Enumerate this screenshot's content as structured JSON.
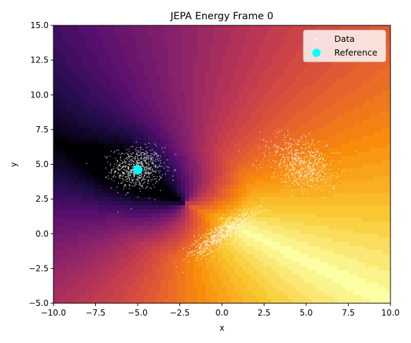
{
  "chart_data": {
    "type": "scatter",
    "title": "JEPA Energy Frame 0",
    "xlabel": "x",
    "ylabel": "y",
    "xlim": [
      -10,
      10
    ],
    "ylim": [
      -5,
      15
    ],
    "xticks": [
      -10,
      -7.5,
      -5,
      -2.5,
      0,
      2.5,
      5,
      7.5,
      10
    ],
    "yticks": [
      -5,
      -2.5,
      0,
      2.5,
      5,
      7.5,
      10,
      12.5,
      15
    ],
    "xtick_labels": [
      "−10.0",
      "−7.5",
      "−5.0",
      "−2.5",
      "0.0",
      "2.5",
      "5.0",
      "7.5",
      "10.0"
    ],
    "ytick_labels": [
      "−5.0",
      "−2.5",
      "0.0",
      "2.5",
      "5.0",
      "7.5",
      "10.0",
      "12.5",
      "15.0"
    ],
    "grid": false,
    "legend": {
      "position": "upper-right",
      "entries": [
        {
          "label": "Data",
          "color": "#ffffff"
        },
        {
          "label": "Reference",
          "color": "#00ffff"
        }
      ]
    },
    "background": {
      "kind": "energy-contour",
      "colormap": "inferno",
      "colors": {
        "low": "#000004",
        "mid": "#bc3754",
        "high": "#fcffa4"
      }
    },
    "series": [
      {
        "name": "Data",
        "kind": "scatter",
        "color": "#ffffff",
        "clusters": [
          {
            "center": [
              -5.0,
              4.7
            ],
            "spread": [
              0.75,
              0.75
            ],
            "n": 700
          },
          {
            "center": [
              4.8,
              5.0
            ],
            "spread": [
              1.1,
              0.8
            ],
            "rotation_deg": -40,
            "n": 700
          },
          {
            "center": [
              0.0,
              0.0
            ],
            "spread": [
              1.2,
              0.35
            ],
            "rotation_deg": 40,
            "n": 700
          }
        ]
      },
      {
        "name": "Reference",
        "kind": "point",
        "color": "#00ffff",
        "x": -5.0,
        "y": 4.6
      }
    ]
  }
}
